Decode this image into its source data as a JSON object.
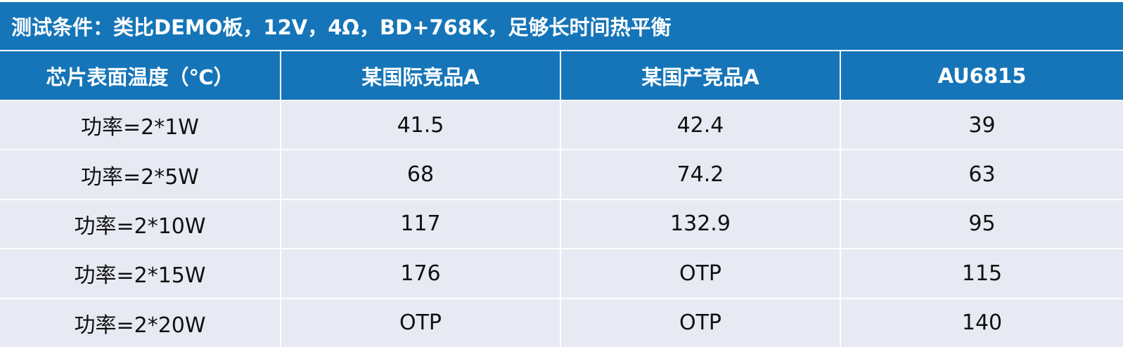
{
  "table": {
    "title": "测试条件：类比DEMO板，12V，4Ω，BD+768K，足够长时间热平衡",
    "headers": [
      "芯片表面温度（℃）",
      "某国际竞品A",
      "某国产竞品A",
      "AU6815"
    ],
    "rows": [
      [
        "功率=2*1W",
        "41.5",
        "42.4",
        "39"
      ],
      [
        "功率=2*5W",
        "68",
        "74.2",
        "63"
      ],
      [
        "功率=2*10W",
        "117",
        "132.9",
        "95"
      ],
      [
        "功率=2*15W",
        "176",
        "OTP",
        "115"
      ],
      [
        "功率=2*20W",
        "OTP",
        "OTP",
        "140"
      ]
    ]
  },
  "colors": {
    "header_bg": "#1575b8",
    "row_bg": "#e8eaf3",
    "grid": "#ffffff"
  }
}
